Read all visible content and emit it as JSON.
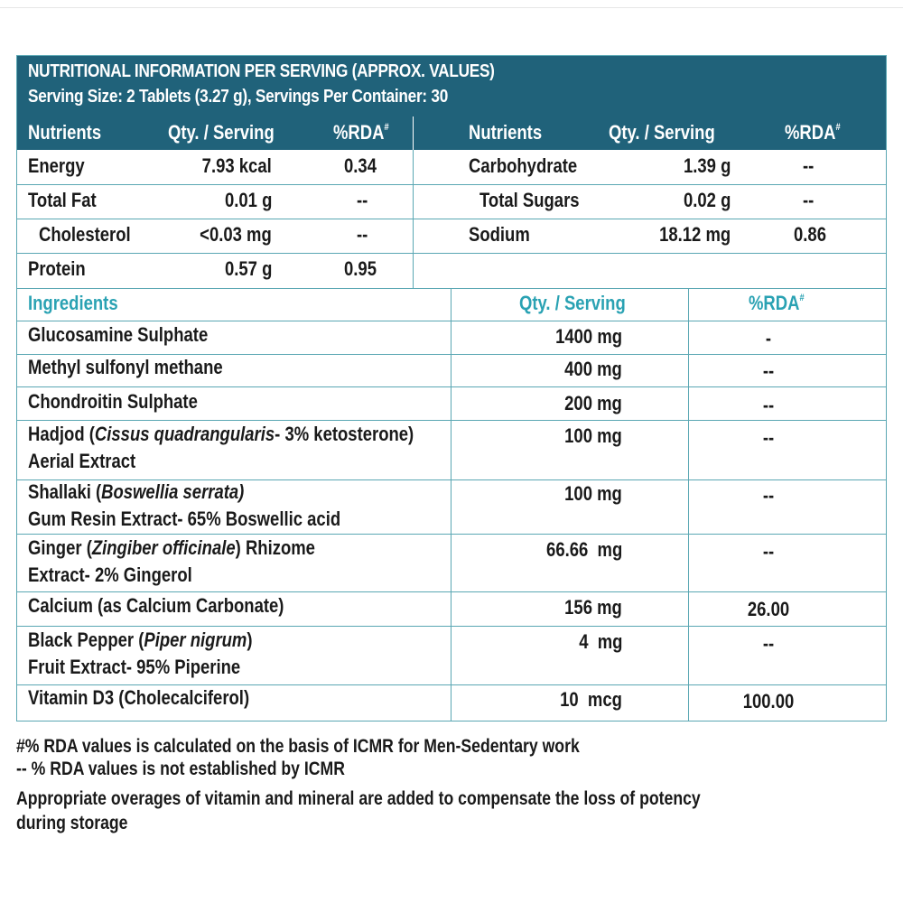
{
  "header": {
    "title": "NUTRITIONAL INFORMATION PER SERVING (APPROX. VALUES)",
    "serving": "Serving Size: 2 Tablets (3.27 g), Servings Per Container: 30"
  },
  "nutrient_columns": {
    "nutrients": "Nutrients",
    "qty": "Qty. / Serving",
    "rda": "%RDA",
    "rda_mark": "#"
  },
  "nutrients_left": [
    {
      "name": "Energy",
      "qty": "7.93 kcal",
      "rda": "0.34"
    },
    {
      "name": "Total Fat",
      "qty": "0.01 g",
      "rda": "--"
    },
    {
      "name": "Cholesterol",
      "qty": "<0.03 mg",
      "rda": "--"
    },
    {
      "name": "Protein",
      "qty": "0.57 g",
      "rda": "0.95"
    }
  ],
  "nutrients_right": [
    {
      "name": "Carbohydrate",
      "qty": "1.39 g",
      "rda": "--"
    },
    {
      "name": "Total Sugars",
      "qty": "0.02 g",
      "rda": "--"
    },
    {
      "name": "Sodium",
      "qty": "18.12 mg",
      "rda": "0.86"
    }
  ],
  "ingredient_columns": {
    "ingredients": "Ingredients",
    "qty": "Qty. / Serving",
    "rda": "%RDA",
    "rda_mark": "#"
  },
  "ingredients": [
    {
      "pre": "Glucosamine Sulphate",
      "ital": "",
      "post": "",
      "line2": "",
      "qty": "1400 mg",
      "rda": "-"
    },
    {
      "pre": "Methyl sulfonyl methane",
      "ital": "",
      "post": "",
      "line2": "",
      "qty": "400 mg",
      "rda": "--"
    },
    {
      "pre": "Chondroitin Sulphate",
      "ital": "",
      "post": "",
      "line2": "",
      "qty": "200 mg",
      "rda": "--"
    },
    {
      "pre": "Hadjod (",
      "ital": "Cissus quadrangularis",
      "post": "- 3% ketosterone)",
      "line2": "Aerial Extract",
      "qty": "100 mg",
      "rda": "--"
    },
    {
      "pre": "Shallaki (",
      "ital": "Boswellia serrata)",
      "post": "",
      "line2": "Gum Resin Extract- 65% Boswellic acid",
      "qty": "100 mg",
      "rda": "--"
    },
    {
      "pre": "Ginger (",
      "ital": "Zingiber officinale",
      "post": ") Rhizome",
      "line2": "Extract- 2% Gingerol",
      "qty": "66.66  mg",
      "rda": "--"
    },
    {
      "pre": "Calcium (as Calcium Carbonate)",
      "ital": "",
      "post": "",
      "line2": "",
      "qty": "156 mg",
      "rda": "26.00"
    },
    {
      "pre": "Black Pepper (",
      "ital": "Piper nigrum",
      "post": ")",
      "line2": "Fruit Extract- 95% Piperine",
      "qty": "4  mg",
      "rda": "--"
    },
    {
      "pre": "Vitamin D3 (Cholecalciferol)",
      "ital": "",
      "post": "",
      "line2": "",
      "qty": "10  mcg",
      "rda": "100.00"
    }
  ],
  "notes": {
    "note1": "#% RDA values is calculated on the basis of ICMR for Men-Sedentary work",
    "note2": "-- % RDA values is not established by ICMR",
    "note3": "Appropriate overages of vitamin and mineral are added to compensate the loss of potency",
    "note4": "during storage"
  }
}
